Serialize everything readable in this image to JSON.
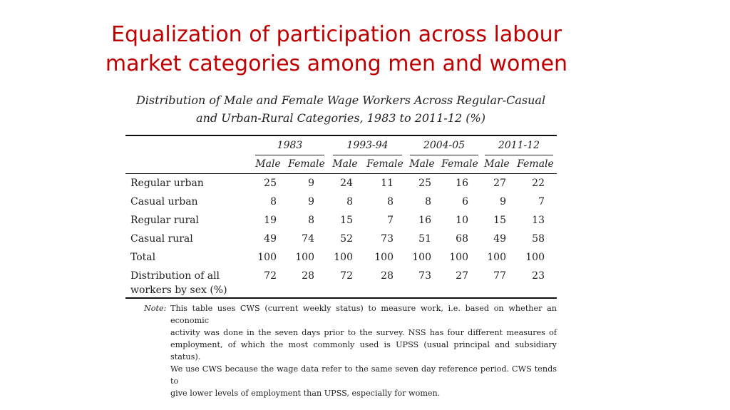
{
  "slide": {
    "title_line1": "Equalization of participation across labour",
    "title_line2": "market categories among men and women"
  },
  "table": {
    "caption_line1": "Distribution of Male and Female Wage Workers Across Regular-Casual",
    "caption_line2": "and Urban-Rural Categories, 1983 to 2011-12 (%)",
    "years": [
      "1983",
      "1993-94",
      "2004-05",
      "2011-12"
    ],
    "subheaders": [
      "Male",
      "Female",
      "Male",
      "Female",
      "Male",
      "Female",
      "Male",
      "Female"
    ],
    "rows": [
      {
        "label": [
          "Regular urban"
        ],
        "values": [
          "25",
          "9",
          "24",
          "11",
          "25",
          "16",
          "27",
          "22"
        ]
      },
      {
        "label": [
          "Casual urban"
        ],
        "values": [
          "8",
          "9",
          "8",
          "8",
          "8",
          "6",
          "9",
          "7"
        ]
      },
      {
        "label": [
          "Regular rural"
        ],
        "values": [
          "19",
          "8",
          "15",
          "7",
          "16",
          "10",
          "15",
          "13"
        ]
      },
      {
        "label": [
          "Casual rural"
        ],
        "values": [
          "49",
          "74",
          "52",
          "73",
          "51",
          "68",
          "49",
          "58"
        ]
      },
      {
        "label": [
          "Total"
        ],
        "values": [
          "100",
          "100",
          "100",
          "100",
          "100",
          "100",
          "100",
          "100"
        ]
      },
      {
        "label": [
          "Distribution of all",
          "workers by sex (%)"
        ],
        "values": [
          "72",
          "28",
          "72",
          "28",
          "73",
          "27",
          "77",
          "23"
        ]
      }
    ],
    "note_label": "Note:",
    "note_lines": [
      "This table uses CWS (current weekly status) to measure work, i.e. based on whether an economic",
      "activity was done in the seven days prior to the survey. NSS has four different measures of",
      "employment, of which the most commonly used is UPSS (usual principal and subsidiary status).",
      "We use CWS because the wage data refer to the same seven day reference period. CWS tends to",
      "give lower levels of employment than UPSS, especially for women."
    ]
  }
}
